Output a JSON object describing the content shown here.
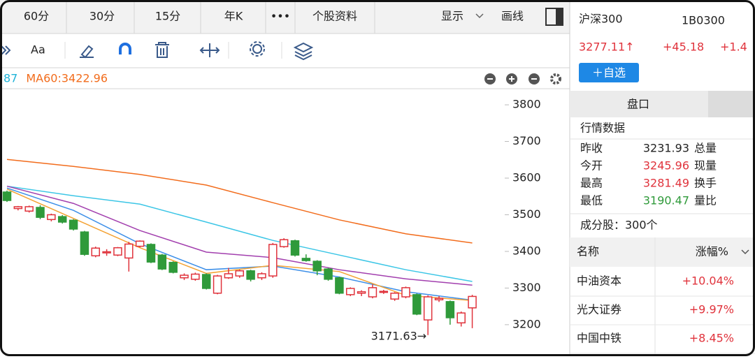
{
  "tabs": [
    "60分",
    "30分",
    "15分",
    "年K",
    "•••",
    "个股资料",
    "显示",
    "画线"
  ],
  "toolbar": {
    "font_button": "Aa"
  },
  "chart_data": {
    "type": "candlestick",
    "legend": [
      {
        "text": "87",
        "color": "#1fb3d8"
      },
      {
        "text": "MA60:3422.96",
        "color": "#f26c1c"
      }
    ],
    "ylim": [
      3114,
      3844
    ],
    "yticks": [
      3200,
      3300,
      3400,
      3500,
      3600,
      3700,
      3800
    ],
    "xlim": [
      -0.63,
      50.8
    ],
    "up_color": "#e0333c",
    "down_color": "#2f9a3a",
    "ohlc": [
      [
        3562,
        3566,
        3535,
        3539
      ],
      [
        3517,
        3524,
        3512,
        3522
      ],
      [
        3510,
        3525,
        3506,
        3522
      ],
      [
        3520,
        3526,
        3488,
        3493
      ],
      [
        3487,
        3503,
        3482,
        3500
      ],
      [
        3495,
        3499,
        3476,
        3480
      ],
      [
        3485,
        3488,
        3457,
        3461
      ],
      [
        3453,
        3456,
        3388,
        3392
      ],
      [
        3388,
        3413,
        3384,
        3409
      ],
      [
        3396,
        3406,
        3388,
        3399
      ],
      [
        3390,
        3412,
        3387,
        3410
      ],
      [
        3382,
        3426,
        3345,
        3420
      ],
      [
        3414,
        3430,
        3411,
        3428
      ],
      [
        3419,
        3422,
        3368,
        3371
      ],
      [
        3390,
        3393,
        3349,
        3352
      ],
      [
        3370,
        3373,
        3340,
        3343
      ],
      [
        3328,
        3340,
        3322,
        3335
      ],
      [
        3324,
        3342,
        3320,
        3338
      ],
      [
        3337,
        3340,
        3296,
        3299
      ],
      [
        3286,
        3336,
        3283,
        3333
      ],
      [
        3328,
        3355,
        3325,
        3339
      ],
      [
        3333,
        3350,
        3328,
        3347
      ],
      [
        3347,
        3350,
        3318,
        3324
      ],
      [
        3328,
        3343,
        3322,
        3339
      ],
      [
        3333,
        3423,
        3328,
        3419
      ],
      [
        3413,
        3436,
        3410,
        3432
      ],
      [
        3429,
        3432,
        3386,
        3390
      ],
      [
        3381,
        3392,
        3372,
        3375
      ],
      [
        3373,
        3376,
        3335,
        3347
      ],
      [
        3352,
        3355,
        3320,
        3324
      ],
      [
        3328,
        3331,
        3283,
        3286
      ],
      [
        3282,
        3302,
        3278,
        3299
      ],
      [
        3286,
        3294,
        3278,
        3290
      ],
      [
        3276,
        3310,
        3272,
        3301
      ],
      [
        3289,
        3295,
        3284,
        3291
      ],
      [
        3270,
        3289,
        3265,
        3286
      ],
      [
        3276,
        3304,
        3272,
        3301
      ],
      [
        3282,
        3285,
        3226,
        3229
      ],
      [
        3213,
        3280,
        3171.63,
        3276
      ],
      [
        3268,
        3278,
        3262,
        3272
      ],
      [
        3263,
        3266,
        3200,
        3219
      ],
      [
        3205,
        3236,
        3195,
        3232
      ],
      [
        3245.96,
        3281.49,
        3190.47,
        3277.11
      ]
    ],
    "low_label": {
      "index": 38,
      "text": "3171.63→"
    },
    "ma_x": [
      0,
      6,
      12,
      18,
      24,
      30,
      36,
      42
    ],
    "ma": [
      {
        "color": "#f26c1c",
        "values": [
          3651,
          3632,
          3610,
          3581,
          3533,
          3486,
          3448,
          3422.96
        ]
      },
      {
        "color": "#3cc6e6",
        "values": [
          3578,
          3552,
          3529,
          3480,
          3430,
          3390,
          3350,
          3318
        ]
      },
      {
        "color": "#a23fae",
        "values": [
          3578,
          3531,
          3457,
          3398,
          3383,
          3350,
          3325,
          3308
        ]
      },
      {
        "color": "#3b8ee8",
        "values": [
          3573,
          3512,
          3421,
          3350,
          3360,
          3330,
          3290,
          3267
        ]
      },
      {
        "color": "#f4a233",
        "values": [
          3570,
          3490,
          3410,
          3340,
          3362,
          3345,
          3280,
          3266
        ]
      }
    ]
  },
  "stock": {
    "name": "沪深300",
    "code": "1B0300",
    "price": "3277.11↑",
    "change": "+45.18",
    "pct": "+1.4",
    "watch": "＋自选"
  },
  "panel_tab": "盘口",
  "quote": {
    "title": "行情数据",
    "rows": [
      [
        "昨收",
        "3231.93",
        "总量"
      ],
      [
        "今开",
        "3245.96",
        "现量"
      ],
      [
        "最高",
        "3281.49",
        "换手"
      ],
      [
        "最低",
        "3190.47",
        "量比"
      ]
    ]
  },
  "components": {
    "title": "成分股：300个",
    "header": [
      "名称",
      "涨幅%"
    ],
    "rows": [
      [
        "中油资本",
        "+10.04%"
      ],
      [
        "光大证券",
        "+9.97%"
      ],
      [
        "中国中铁",
        "+8.45%"
      ]
    ]
  }
}
